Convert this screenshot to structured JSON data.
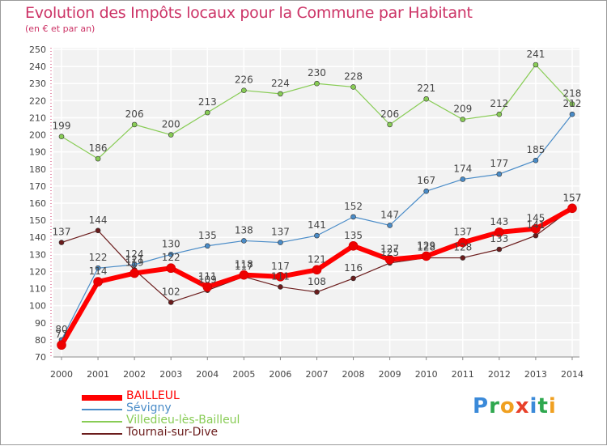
{
  "header": {
    "title": "Evolution des Impôts locaux pour la Commune par Habitant",
    "subtitle": "(en € et par an)"
  },
  "chart_data": {
    "type": "line",
    "title": "Evolution des Impôts locaux pour la Commune par Habitant",
    "subtitle": "(en € et par an)",
    "xlabel": "",
    "ylabel": "",
    "x": [
      2000,
      2001,
      2002,
      2003,
      2004,
      2005,
      2006,
      2007,
      2008,
      2009,
      2010,
      2011,
      2012,
      2013,
      2014
    ],
    "ylim": [
      70,
      250
    ],
    "yticks": [
      70,
      80,
      90,
      100,
      110,
      120,
      130,
      140,
      150,
      160,
      170,
      180,
      190,
      200,
      210,
      220,
      230,
      240,
      250
    ],
    "grid": true,
    "legend_position": "bottom-left",
    "series": [
      {
        "name": "Tournai-sur-Dive",
        "color": "#6b1c1c",
        "values": [
          137,
          144,
          121,
          102,
          109,
          117,
          111,
          108,
          116,
          125,
          128,
          128,
          133,
          141,
          157
        ]
      },
      {
        "name": "Sévigny",
        "color": "#4a8cc8",
        "values": [
          80,
          122,
          124,
          130,
          135,
          138,
          137,
          141,
          152,
          147,
          167,
          174,
          177,
          185,
          212
        ]
      },
      {
        "name": "Villedieu-lès-Bailleul",
        "color": "#88cc55",
        "values": [
          199,
          186,
          206,
          200,
          213,
          226,
          224,
          230,
          228,
          206,
          221,
          209,
          212,
          241,
          218
        ]
      },
      {
        "name": "BAILLEUL",
        "color": "#ff0000",
        "values": [
          77,
          114,
          119,
          122,
          111,
          118,
          117,
          121,
          135,
          127,
          129,
          137,
          143,
          145,
          157
        ]
      }
    ],
    "legend": [
      "BAILLEUL",
      "Sévigny",
      "Villedieu-lès-Bailleul",
      "Tournai-sur-Dive"
    ]
  },
  "logo": {
    "letters": [
      "P",
      "r",
      "o",
      "x",
      "i",
      "t",
      "i"
    ],
    "colors": [
      "#3b8ad9",
      "#2fa84f",
      "#f0a020",
      "#e8402a",
      "#3b8ad9",
      "#2fa84f",
      "#f0a020"
    ]
  }
}
